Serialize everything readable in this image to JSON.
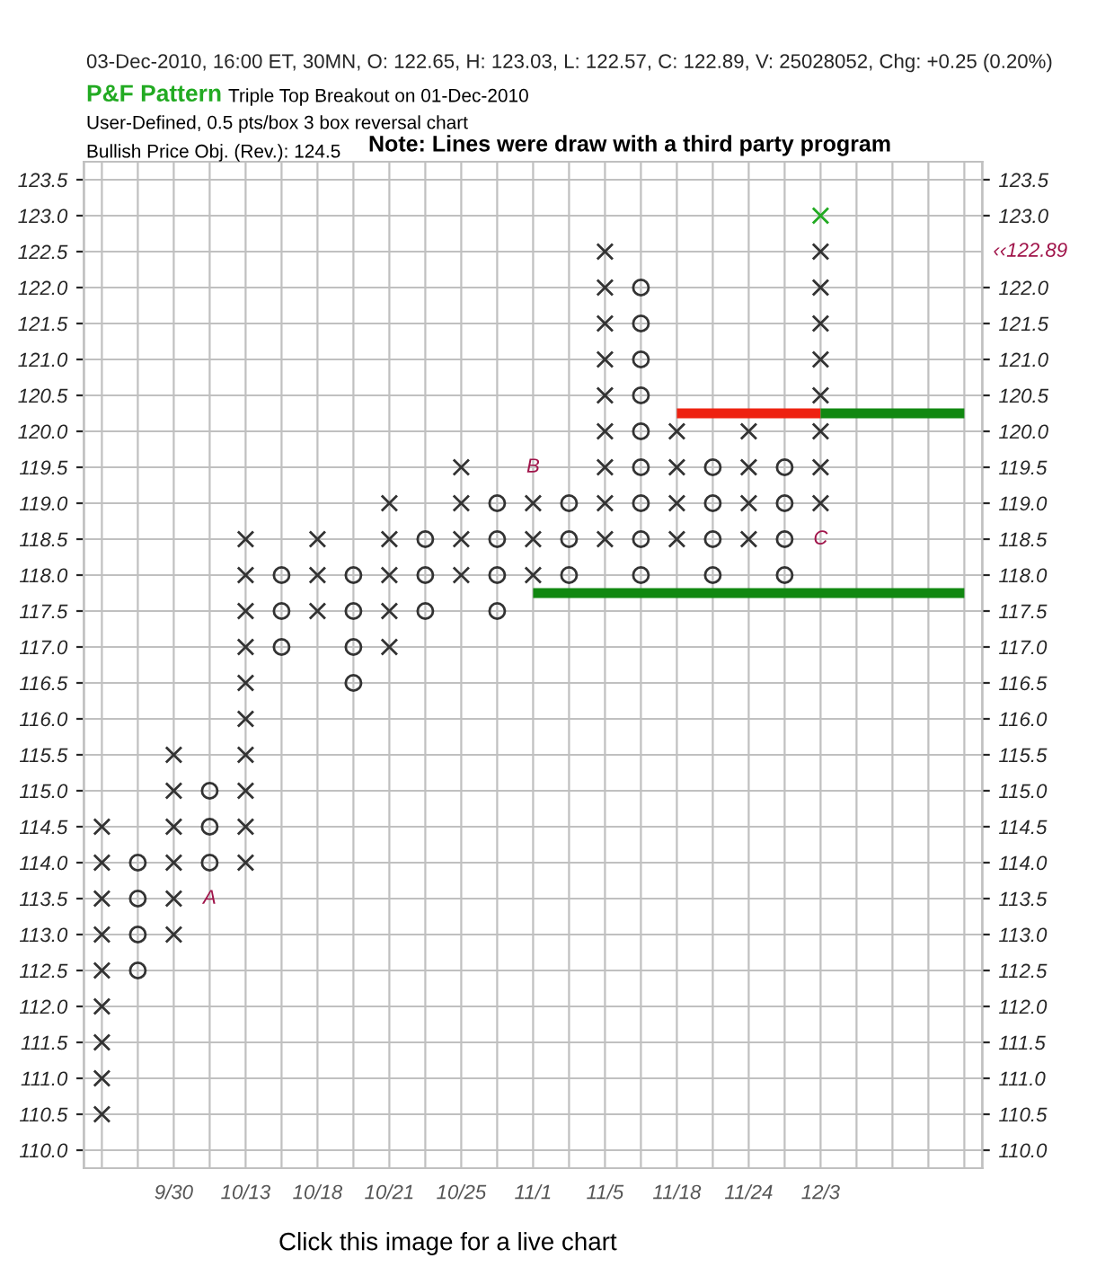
{
  "chart_data": {
    "type": "scatter",
    "subtitle": "03-Dec-2010, 16:00 ET, 30MN, O: 122.65, H: 123.03, L: 122.57, C: 122.89, V: 25028052, Chg: +0.25 (0.20%)",
    "annotations": [
      "P&F Pattern",
      "Triple Top Breakout on 01-Dec-2010",
      "User-Defined, 0.5 pts/box 3 box reversal chart",
      "Bullish Price Obj. (Rev.): 124.5",
      "Note: Lines were draw with a third party program",
      "Click this image for a live chart",
      "A",
      "B",
      "C",
      "‹‹122.89"
    ],
    "categories": [
      null,
      null,
      "9/30",
      null,
      "10/13",
      null,
      "10/18",
      null,
      "10/21",
      null,
      "10/25",
      null,
      "11/1",
      null,
      "11/5",
      null,
      "11/18",
      null,
      "11/24",
      null,
      "12/3",
      null,
      null,
      null,
      null
    ],
    "series": [
      {
        "marker": "cross",
        "color": "#333333",
        "values": [
          110.5,
          null,
          113.0,
          null,
          114.0,
          null,
          117.5,
          null,
          117.0,
          null,
          118.0,
          null,
          118.0,
          null,
          118.5,
          null,
          118.5,
          null,
          118.5,
          null,
          119.0,
          null,
          null,
          null,
          null
        ]
      },
      {
        "marker": "cross",
        "color": "#333333",
        "values": [
          111.0,
          null,
          113.5,
          null,
          114.5,
          null,
          118.0,
          null,
          117.5,
          null,
          118.5,
          null,
          118.5,
          null,
          119.0,
          null,
          119.0,
          null,
          119.0,
          null,
          119.5,
          null,
          null,
          null,
          null
        ]
      },
      {
        "marker": "cross",
        "color": "#333333",
        "values": [
          111.5,
          null,
          114.0,
          null,
          115.0,
          null,
          118.5,
          null,
          118.0,
          null,
          119.0,
          null,
          119.0,
          null,
          119.5,
          null,
          119.5,
          null,
          119.5,
          null,
          120.0,
          null,
          null,
          null,
          null
        ]
      },
      {
        "marker": "cross",
        "color": "#333333",
        "values": [
          112.0,
          null,
          114.5,
          null,
          115.5,
          null,
          null,
          null,
          118.5,
          null,
          119.5,
          null,
          null,
          null,
          120.0,
          null,
          120.0,
          null,
          120.0,
          null,
          120.5,
          null,
          null,
          null,
          null
        ]
      },
      {
        "marker": "cross",
        "color": "#333333",
        "values": [
          112.5,
          null,
          115.0,
          null,
          116.0,
          null,
          null,
          null,
          119.0,
          null,
          null,
          null,
          null,
          null,
          120.5,
          null,
          null,
          null,
          null,
          null,
          121.0,
          null,
          null,
          null,
          null
        ]
      },
      {
        "marker": "cross",
        "color": "#333333",
        "values": [
          113.0,
          null,
          115.5,
          null,
          116.5,
          null,
          null,
          null,
          null,
          null,
          null,
          null,
          null,
          null,
          121.0,
          null,
          null,
          null,
          null,
          null,
          121.5,
          null,
          null,
          null,
          null
        ]
      },
      {
        "marker": "cross",
        "color": "#333333",
        "values": [
          113.5,
          null,
          null,
          null,
          117.0,
          null,
          null,
          null,
          null,
          null,
          null,
          null,
          null,
          null,
          121.5,
          null,
          null,
          null,
          null,
          null,
          122.0,
          null,
          null,
          null,
          null
        ]
      },
      {
        "marker": "cross",
        "color": "#333333",
        "values": [
          114.0,
          null,
          null,
          null,
          117.5,
          null,
          null,
          null,
          null,
          null,
          null,
          null,
          null,
          null,
          122.0,
          null,
          null,
          null,
          null,
          null,
          122.5,
          null,
          null,
          null,
          null
        ]
      },
      {
        "marker": "cross",
        "color": "#333333",
        "values": [
          114.5,
          null,
          null,
          null,
          118.0,
          null,
          null,
          null,
          null,
          null,
          null,
          null,
          null,
          null,
          122.5,
          null,
          null,
          null,
          null,
          null,
          null,
          null,
          null,
          null,
          null
        ]
      },
      {
        "marker": "cross",
        "color": "#333333",
        "values": [
          null,
          null,
          null,
          null,
          118.5,
          null,
          null,
          null,
          null,
          null,
          null,
          null,
          null,
          null,
          null,
          null,
          null,
          null,
          null,
          null,
          null,
          null,
          null,
          null,
          null
        ]
      },
      {
        "marker": "cross",
        "color": "#22aa22",
        "values": [
          null,
          null,
          null,
          null,
          null,
          null,
          null,
          null,
          null,
          null,
          null,
          null,
          null,
          null,
          null,
          null,
          null,
          null,
          null,
          null,
          123.0,
          null,
          null,
          null,
          null
        ]
      },
      {
        "marker": "circle",
        "color": "#333333",
        "values": [
          null,
          112.5,
          null,
          114.0,
          null,
          117.0,
          null,
          116.5,
          null,
          117.5,
          null,
          117.5,
          null,
          118.0,
          null,
          118.0,
          null,
          118.0,
          null,
          118.0,
          null,
          null,
          null,
          null,
          null
        ]
      },
      {
        "marker": "circle",
        "color": "#333333",
        "values": [
          null,
          113.0,
          null,
          114.5,
          null,
          117.5,
          null,
          117.0,
          null,
          118.0,
          null,
          118.0,
          null,
          118.5,
          null,
          118.5,
          null,
          118.5,
          null,
          118.5,
          null,
          null,
          null,
          null,
          null
        ]
      },
      {
        "marker": "circle",
        "color": "#333333",
        "values": [
          null,
          113.5,
          null,
          115.0,
          null,
          118.0,
          null,
          117.5,
          null,
          118.5,
          null,
          118.5,
          null,
          119.0,
          null,
          119.0,
          null,
          119.0,
          null,
          119.0,
          null,
          null,
          null,
          null,
          null
        ]
      },
      {
        "marker": "circle",
        "color": "#333333",
        "values": [
          null,
          114.0,
          null,
          null,
          null,
          null,
          null,
          118.0,
          null,
          null,
          null,
          119.0,
          null,
          null,
          null,
          119.5,
          null,
          119.5,
          null,
          119.5,
          null,
          null,
          null,
          null,
          null
        ]
      },
      {
        "marker": "circle",
        "color": "#333333",
        "values": [
          null,
          null,
          null,
          null,
          null,
          null,
          null,
          null,
          null,
          null,
          null,
          null,
          null,
          null,
          null,
          120.0,
          null,
          null,
          null,
          null,
          null,
          null,
          null,
          null,
          null
        ]
      },
      {
        "marker": "circle",
        "color": "#333333",
        "values": [
          null,
          null,
          null,
          null,
          null,
          null,
          null,
          null,
          null,
          null,
          null,
          null,
          null,
          null,
          null,
          120.5,
          null,
          null,
          null,
          null,
          null,
          null,
          null,
          null,
          null
        ]
      },
      {
        "marker": "circle",
        "color": "#333333",
        "values": [
          null,
          null,
          null,
          null,
          null,
          null,
          null,
          null,
          null,
          null,
          null,
          null,
          null,
          null,
          null,
          121.0,
          null,
          null,
          null,
          null,
          null,
          null,
          null,
          null,
          null
        ]
      },
      {
        "marker": "circle",
        "color": "#333333",
        "values": [
          null,
          null,
          null,
          null,
          null,
          null,
          null,
          null,
          null,
          null,
          null,
          null,
          null,
          null,
          null,
          121.5,
          null,
          null,
          null,
          null,
          null,
          null,
          null,
          null,
          null
        ]
      },
      {
        "marker": "circle",
        "color": "#333333",
        "values": [
          null,
          null,
          null,
          null,
          null,
          null,
          null,
          null,
          null,
          null,
          null,
          null,
          null,
          null,
          null,
          122.0,
          null,
          null,
          null,
          null,
          null,
          null,
          null,
          null,
          null
        ]
      },
      {
        "type": "line",
        "color": "#ee2211",
        "values": [
          null,
          null,
          null,
          null,
          null,
          null,
          null,
          null,
          null,
          null,
          null,
          null,
          null,
          null,
          null,
          null,
          120.25,
          120.25,
          120.25,
          120.25,
          120.25,
          null,
          null,
          null,
          null
        ]
      },
      {
        "type": "line",
        "color": "#118811",
        "values": [
          null,
          null,
          null,
          null,
          null,
          null,
          null,
          null,
          null,
          null,
          null,
          null,
          null,
          null,
          null,
          null,
          null,
          null,
          null,
          null,
          120.25,
          120.25,
          120.25,
          120.25,
          120.25
        ]
      },
      {
        "type": "line",
        "color": "#118811",
        "values": [
          null,
          null,
          null,
          null,
          null,
          null,
          null,
          null,
          null,
          null,
          null,
          null,
          117.75,
          117.75,
          117.75,
          117.75,
          117.75,
          117.75,
          117.75,
          117.75,
          117.75,
          117.75,
          117.75,
          117.75,
          117.75
        ]
      }
    ],
    "ylim": [
      109.75,
      123.75
    ],
    "yticks": [
      {
        "value": 110.0,
        "label": "110.0"
      },
      {
        "value": 110.5,
        "label": "110.5"
      },
      {
        "value": 111.0,
        "label": "111.0"
      },
      {
        "value": 111.5,
        "label": "111.5"
      },
      {
        "value": 112.0,
        "label": "112.0"
      },
      {
        "value": 112.5,
        "label": "112.5"
      },
      {
        "value": 113.0,
        "label": "113.0"
      },
      {
        "value": 113.5,
        "label": "113.5"
      },
      {
        "value": 114.0,
        "label": "114.0"
      },
      {
        "value": 114.5,
        "label": "114.5"
      },
      {
        "value": 115.0,
        "label": "115.0"
      },
      {
        "value": 115.5,
        "label": "115.5"
      },
      {
        "value": 116.0,
        "label": "116.0"
      },
      {
        "value": 116.5,
        "label": "116.5"
      },
      {
        "value": 117.0,
        "label": "117.0"
      },
      {
        "value": 117.5,
        "label": "117.5"
      },
      {
        "value": 118.0,
        "label": "118.0"
      },
      {
        "value": 118.5,
        "label": "118.5"
      },
      {
        "value": 119.0,
        "label": "119.0"
      },
      {
        "value": 119.5,
        "label": "119.5"
      },
      {
        "value": 120.0,
        "label": "120.0"
      },
      {
        "value": 120.5,
        "label": "120.5"
      },
      {
        "value": 121.0,
        "label": "121.0"
      },
      {
        "value": 121.5,
        "label": "121.5"
      },
      {
        "value": 122.0,
        "label": "122.0"
      },
      {
        "value": 122.5,
        "label": "122.5"
      },
      {
        "value": 123.0,
        "label": "123.0"
      },
      {
        "value": 123.5,
        "label": "123.5"
      }
    ],
    "y2lim": [
      109.75,
      123.75
    ],
    "y2ticks": [
      {
        "value": 110.0,
        "label": "110.0"
      },
      {
        "value": 110.5,
        "label": "110.5"
      },
      {
        "value": 111.0,
        "label": "111.0"
      },
      {
        "value": 111.5,
        "label": "111.5"
      },
      {
        "value": 112.0,
        "label": "112.0"
      },
      {
        "value": 112.5,
        "label": "112.5"
      },
      {
        "value": 113.0,
        "label": "113.0"
      },
      {
        "value": 113.5,
        "label": "113.5"
      },
      {
        "value": 114.0,
        "label": "114.0"
      },
      {
        "value": 114.5,
        "label": "114.5"
      },
      {
        "value": 115.0,
        "label": "115.0"
      },
      {
        "value": 115.5,
        "label": "115.5"
      },
      {
        "value": 116.0,
        "label": "116.0"
      },
      {
        "value": 116.5,
        "label": "116.5"
      },
      {
        "value": 117.0,
        "label": "117.0"
      },
      {
        "value": 117.5,
        "label": "117.5"
      },
      {
        "value": 118.0,
        "label": "118.0"
      },
      {
        "value": 118.5,
        "label": "118.5"
      },
      {
        "value": 119.0,
        "label": "119.0"
      },
      {
        "value": 119.5,
        "label": "119.5"
      },
      {
        "value": 120.0,
        "label": "120.0"
      },
      {
        "value": 120.5,
        "label": "120.5"
      },
      {
        "value": 121.0,
        "label": "121.0"
      },
      {
        "value": 121.5,
        "label": "121.5"
      },
      {
        "value": 122.0,
        "label": "122.0"
      },
      {
        "value": 123.0,
        "label": "123.0"
      },
      {
        "value": 123.5,
        "label": "123.5"
      }
    ],
    "grid": true
  }
}
